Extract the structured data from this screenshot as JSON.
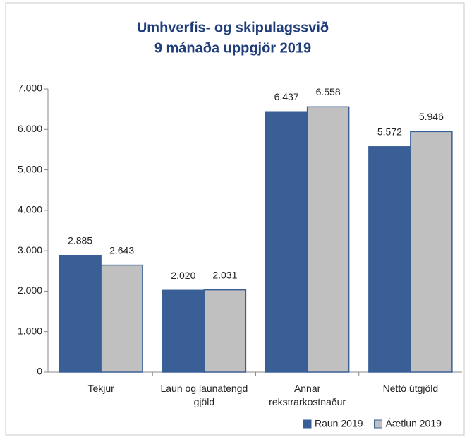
{
  "chart_data": {
    "type": "bar",
    "title": [
      "Umhverfis- og skipulagssvið",
      "9 mánaða uppgjör 2019"
    ],
    "categories": [
      "Tekjur",
      "Laun og launatengd gjöld",
      "Annar rekstrarkostnaður",
      "Nettó útgjöld"
    ],
    "series": [
      {
        "name": "Raun 2019",
        "color": "#3a5f96",
        "values": [
          2885,
          2020,
          6437,
          5572
        ],
        "value_labels": [
          "2.885",
          "2.020",
          "6.437",
          "5.572"
        ]
      },
      {
        "name": "Áætlun 2019",
        "color": "#c0c0c0",
        "values": [
          2643,
          2031,
          6558,
          5946
        ],
        "value_labels": [
          "2.643",
          "2.031",
          "6.558",
          "5.946"
        ]
      }
    ],
    "ylim": [
      0,
      7000
    ],
    "yticks": [
      0,
      {
        "value": 1000,
        "label": "1.000"
      },
      {
        "value": 2000,
        "label": "2.000"
      },
      {
        "value": 3000,
        "label": "3.000"
      },
      {
        "value": 4000,
        "label": "4.000"
      },
      {
        "value": 5000,
        "label": "5.000"
      },
      {
        "value": 6000,
        "label": "6.000"
      },
      {
        "value": 7000,
        "label": "7.000"
      }
    ],
    "legend": "bottom-right"
  }
}
